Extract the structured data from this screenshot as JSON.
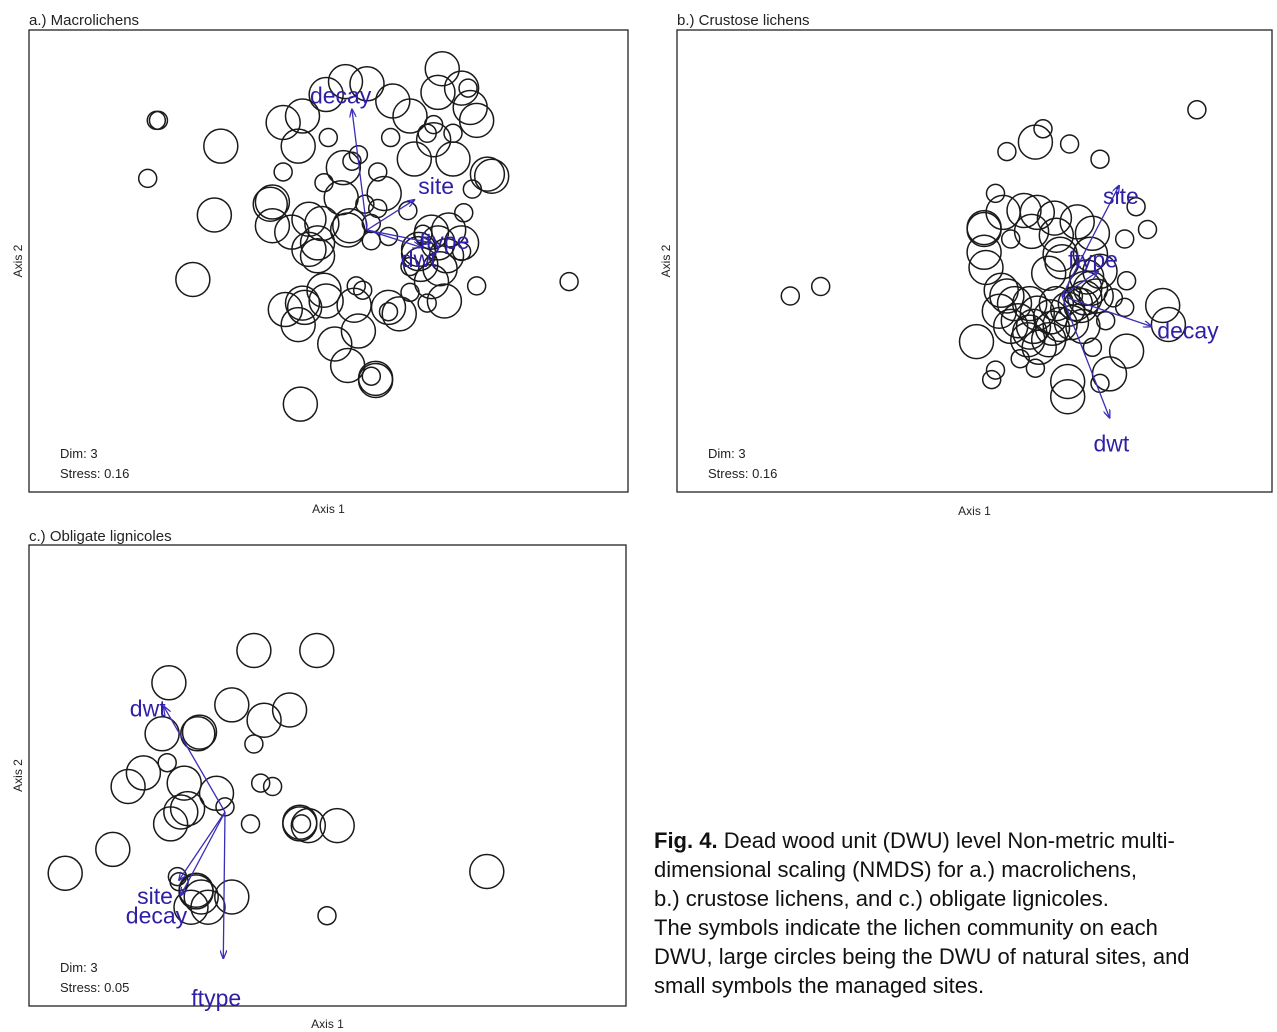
{
  "chart_data": [
    {
      "type": "scatter",
      "title": "a.) Macrolichens",
      "xlabel": "Axis 1",
      "ylabel": "Axis 2",
      "stats": [
        "Dim: 3",
        "Stress: 0.16"
      ],
      "vectors": [
        {
          "label": "decay",
          "x": -0.07,
          "y": 0.56
        },
        {
          "label": "site",
          "x": 0.22,
          "y": 0.14
        },
        {
          "label": "dwt",
          "x": 0.25,
          "y": -0.08
        },
        {
          "label": "ftype",
          "x": 0.3,
          "y": -0.06
        }
      ],
      "points": {
        "large": [
          [
            -0.68,
            0.39
          ],
          [
            -0.71,
            0.07
          ],
          [
            -0.81,
            -0.23
          ],
          [
            -0.32,
            0.39
          ],
          [
            -0.39,
            0.5
          ],
          [
            -0.3,
            0.53
          ],
          [
            -0.19,
            0.63
          ],
          [
            -0.1,
            0.69
          ],
          [
            0.0,
            0.68
          ],
          [
            0.12,
            0.6
          ],
          [
            0.2,
            0.53
          ],
          [
            0.35,
            0.75
          ],
          [
            0.33,
            0.64
          ],
          [
            0.44,
            0.66
          ],
          [
            0.48,
            0.57
          ],
          [
            0.51,
            0.51
          ],
          [
            0.31,
            0.42
          ],
          [
            0.4,
            0.33
          ],
          [
            0.22,
            0.33
          ],
          [
            0.56,
            0.26
          ],
          [
            0.58,
            0.25
          ],
          [
            -0.11,
            0.29
          ],
          [
            0.08,
            0.17
          ],
          [
            -0.12,
            0.15
          ],
          [
            -0.27,
            0.05
          ],
          [
            -0.27,
            -0.09
          ],
          [
            -0.45,
            0.12
          ],
          [
            -0.44,
            0.13
          ],
          [
            -0.44,
            0.02
          ],
          [
            -0.35,
            -0.01
          ],
          [
            -0.23,
            -0.06
          ],
          [
            -0.23,
            -0.12
          ],
          [
            -0.09,
            0.0
          ],
          [
            -0.08,
            0.02
          ],
          [
            -0.21,
            0.03
          ],
          [
            0.24,
            -0.09
          ],
          [
            0.3,
            -0.01
          ],
          [
            0.33,
            -0.06
          ],
          [
            0.38,
            0.0
          ],
          [
            0.44,
            -0.06
          ],
          [
            0.37,
            -0.12
          ],
          [
            0.24,
            -0.11
          ],
          [
            0.25,
            -0.16
          ],
          [
            0.3,
            -0.24
          ],
          [
            0.34,
            -0.18
          ],
          [
            -0.2,
            -0.28
          ],
          [
            -0.29,
            -0.36
          ],
          [
            -0.38,
            -0.37
          ],
          [
            -0.3,
            -0.34
          ],
          [
            -0.19,
            -0.33
          ],
          [
            -0.06,
            -0.35
          ],
          [
            -0.32,
            -0.44
          ],
          [
            0.1,
            -0.36
          ],
          [
            0.36,
            -0.33
          ],
          [
            -0.15,
            -0.53
          ],
          [
            -0.04,
            -0.47
          ],
          [
            -0.09,
            -0.63
          ],
          [
            0.04,
            -0.69
          ],
          [
            0.04,
            -0.7
          ],
          [
            -0.31,
            -0.81
          ],
          [
            0.15,
            -0.39
          ]
        ],
        "small": [
          [
            -0.97,
            0.51
          ],
          [
            -0.98,
            0.51
          ],
          [
            -1.02,
            0.24
          ],
          [
            -0.18,
            0.43
          ],
          [
            -0.07,
            0.32
          ],
          [
            -0.39,
            0.27
          ],
          [
            -0.2,
            0.22
          ],
          [
            -0.04,
            0.35
          ],
          [
            0.05,
            0.27
          ],
          [
            0.28,
            0.45
          ],
          [
            0.4,
            0.45
          ],
          [
            0.49,
            0.19
          ],
          [
            0.11,
            0.43
          ],
          [
            0.47,
            0.66
          ],
          [
            0.31,
            0.49
          ],
          [
            -0.01,
            0.12
          ],
          [
            0.02,
            0.03
          ],
          [
            0.05,
            0.1
          ],
          [
            0.19,
            0.09
          ],
          [
            0.02,
            -0.05
          ],
          [
            0.1,
            -0.03
          ],
          [
            0.26,
            -0.02
          ],
          [
            0.44,
            -0.1
          ],
          [
            0.45,
            0.08
          ],
          [
            0.2,
            -0.17
          ],
          [
            -0.05,
            -0.26
          ],
          [
            -0.02,
            -0.28
          ],
          [
            0.2,
            -0.29
          ],
          [
            0.28,
            -0.34
          ],
          [
            0.51,
            -0.26
          ],
          [
            0.94,
            -0.24
          ],
          [
            0.02,
            -0.68
          ],
          [
            0.1,
            -0.38
          ]
        ]
      }
    },
    {
      "type": "scatter",
      "title": "b.) Crustose lichens",
      "xlabel": "Axis 1",
      "ylabel": "Axis 2",
      "stats": [
        "Dim: 3",
        "Stress: 0.16"
      ],
      "vectors": [
        {
          "label": "site",
          "x": 0.3,
          "y": 0.58
        },
        {
          "label": "ftype",
          "x": 0.19,
          "y": 0.13
        },
        {
          "label": "decay",
          "x": 0.47,
          "y": -0.16
        },
        {
          "label": "dwt",
          "x": 0.25,
          "y": -0.64
        }
      ],
      "points": {
        "large": [
          [
            -0.14,
            0.81
          ],
          [
            -0.31,
            0.44
          ],
          [
            -0.2,
            0.45
          ],
          [
            -0.13,
            0.44
          ],
          [
            -0.04,
            0.41
          ],
          [
            -0.16,
            0.34
          ],
          [
            -0.03,
            0.32
          ],
          [
            0.08,
            0.39
          ],
          [
            0.16,
            0.33
          ],
          [
            -0.41,
            0.36
          ],
          [
            -0.41,
            0.35
          ],
          [
            -0.41,
            0.23
          ],
          [
            -0.4,
            0.15
          ],
          [
            -0.01,
            0.22
          ],
          [
            0.0,
            0.18
          ],
          [
            0.15,
            0.22
          ],
          [
            0.13,
            0.1
          ],
          [
            0.2,
            0.13
          ],
          [
            -0.07,
            0.12
          ],
          [
            -0.32,
            0.03
          ],
          [
            -0.29,
            0.0
          ],
          [
            -0.25,
            -0.04
          ],
          [
            -0.17,
            -0.04
          ],
          [
            -0.13,
            -0.09
          ],
          [
            -0.15,
            -0.16
          ],
          [
            -0.06,
            -0.11
          ],
          [
            -0.03,
            -0.04
          ],
          [
            0.03,
            -0.07
          ],
          [
            0.07,
            -0.04
          ],
          [
            0.1,
            -0.05
          ],
          [
            0.12,
            -0.01
          ],
          [
            0.18,
            0.0
          ],
          [
            0.12,
            0.04
          ],
          [
            0.15,
            0.04
          ],
          [
            -0.33,
            -0.08
          ],
          [
            -0.27,
            -0.16
          ],
          [
            -0.23,
            -0.13
          ],
          [
            -0.17,
            -0.19
          ],
          [
            -0.18,
            -0.23
          ],
          [
            -0.12,
            -0.27
          ],
          [
            -0.07,
            -0.23
          ],
          [
            -0.05,
            -0.17
          ],
          [
            -0.01,
            -0.15
          ],
          [
            0.05,
            -0.14
          ],
          [
            0.11,
            -0.16
          ],
          [
            -0.45,
            -0.24
          ],
          [
            0.34,
            -0.29
          ],
          [
            0.25,
            -0.41
          ],
          [
            0.03,
            -0.45
          ],
          [
            0.03,
            -0.53
          ],
          [
            0.53,
            -0.05
          ],
          [
            0.56,
            -0.15
          ]
        ],
        "small": [
          [
            0.71,
            0.98
          ],
          [
            -0.1,
            0.88
          ],
          [
            0.04,
            0.8
          ],
          [
            -0.29,
            0.76
          ],
          [
            0.2,
            0.72
          ],
          [
            -0.35,
            0.54
          ],
          [
            0.39,
            0.47
          ],
          [
            0.45,
            0.35
          ],
          [
            0.33,
            0.3
          ],
          [
            -1.43,
            0.0
          ],
          [
            -1.27,
            0.05
          ],
          [
            -0.27,
            0.3
          ],
          [
            0.06,
            0.0
          ],
          [
            0.27,
            -0.01
          ],
          [
            0.33,
            -0.06
          ],
          [
            0.23,
            -0.13
          ],
          [
            0.16,
            -0.27
          ],
          [
            -0.22,
            -0.33
          ],
          [
            -0.14,
            -0.38
          ],
          [
            -0.35,
            -0.39
          ],
          [
            -0.37,
            -0.44
          ],
          [
            0.2,
            -0.46
          ],
          [
            0.34,
            0.08
          ]
        ]
      }
    },
    {
      "type": "scatter",
      "title": "c.) Obligate lignicoles",
      "xlabel": "Axis 1",
      "ylabel": "Axis 2",
      "stats": [
        "Dim: 3",
        "Stress: 0.05"
      ],
      "vectors": [
        {
          "label": "dwt",
          "x": -0.36,
          "y": 0.62
        },
        {
          "label": "site",
          "x": -0.27,
          "y": -0.4
        },
        {
          "label": "decay",
          "x": -0.26,
          "y": -0.49
        },
        {
          "label": "ftype",
          "x": -0.01,
          "y": -0.86
        }
      ],
      "points": {
        "large": [
          [
            0.17,
            0.95
          ],
          [
            0.54,
            0.95
          ],
          [
            -0.33,
            0.76
          ],
          [
            0.04,
            0.63
          ],
          [
            0.38,
            0.6
          ],
          [
            0.23,
            0.54
          ],
          [
            -0.37,
            0.46
          ],
          [
            -0.15,
            0.47
          ],
          [
            -0.16,
            0.46
          ],
          [
            -0.48,
            0.23
          ],
          [
            -0.57,
            0.15
          ],
          [
            -0.24,
            0.17
          ],
          [
            -0.05,
            0.11
          ],
          [
            -0.22,
            0.02
          ],
          [
            -0.26,
            0.0
          ],
          [
            -0.32,
            -0.07
          ],
          [
            -0.66,
            -0.22
          ],
          [
            -0.94,
            -0.36
          ],
          [
            -0.17,
            -0.47
          ],
          [
            -0.17,
            -0.46
          ],
          [
            -0.1,
            -0.56
          ],
          [
            0.04,
            -0.5
          ],
          [
            -0.2,
            -0.56
          ],
          [
            -0.14,
            -0.5
          ],
          [
            0.49,
            -0.08
          ],
          [
            0.66,
            -0.08
          ],
          [
            0.44,
            -0.07
          ],
          [
            0.44,
            -0.06
          ],
          [
            1.54,
            -0.35
          ]
        ],
        "small": [
          [
            -0.34,
            0.29
          ],
          [
            0.17,
            0.4
          ],
          [
            0.21,
            0.17
          ],
          [
            0.15,
            -0.07
          ],
          [
            0.0,
            0.03
          ],
          [
            -0.27,
            -0.41
          ],
          [
            -0.28,
            -0.38
          ],
          [
            0.28,
            0.15
          ],
          [
            0.45,
            -0.07
          ],
          [
            0.6,
            -0.61
          ]
        ]
      }
    }
  ],
  "caption": {
    "fig_label": "Fig. 4.",
    "lines": [
      "Dead wood unit (DWU) level Non-metric multi-",
      "dimensional scaling (NMDS) for a.) macrolichens,",
      "b.) crustose lichens, and c.) obligate lignicoles.",
      "The symbols indicate the lichen community on each",
      "DWU, large circles being the DWU of natural sites, and",
      "small symbols the managed sites."
    ]
  }
}
